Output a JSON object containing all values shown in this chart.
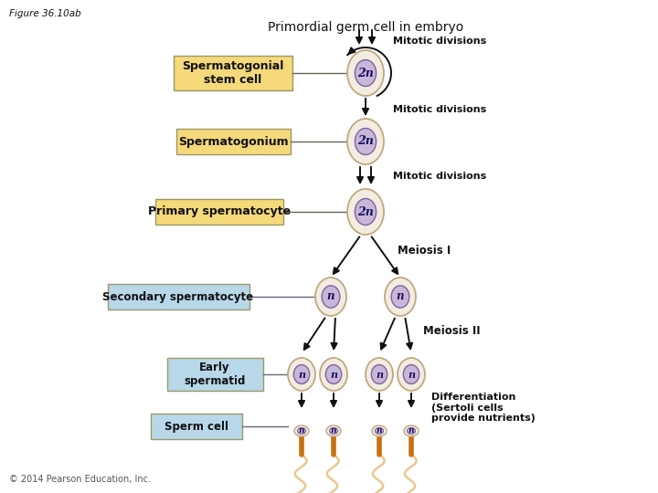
{
  "figure_label": "Figure 36.10ab",
  "copyright": "© 2014 Pearson Education, Inc.",
  "background_color": "#ffffff",
  "title": "Primordial germ cell in embryo",
  "labels": {
    "spermatogonial": "Spermatogonial\nstem cell",
    "spermatogonium": "Spermatogonium",
    "primary": "Primary spermatocyte",
    "secondary": "Secondary spermatocyte",
    "early": "Early\nspermatid",
    "sperm": "Sperm cell"
  },
  "annotations": {
    "mitotic1": "Mitotic divisions",
    "mitotic2": "Mitotic divisions",
    "mitotic3": "Mitotic divisions",
    "meiosis1": "Meiosis I",
    "meiosis2": "Meiosis II",
    "differentiation": "Differentiation\n(Sertoli cells\nprovide nutrients)"
  },
  "yellow_box_color": "#f5d97a",
  "blue_box_color": "#b8d8ea",
  "cell_outer_color": "#f2ede0",
  "cell_nucleus_color": "#c8b8d8",
  "cell_border_color": "#c0a880",
  "nucleus_border_color": "#8060a0",
  "sperm_body_color": "#c87010",
  "sperm_pale_color": "#e8c890",
  "arrow_color": "#111111",
  "text_color": "#111111",
  "label_text_bold": true
}
